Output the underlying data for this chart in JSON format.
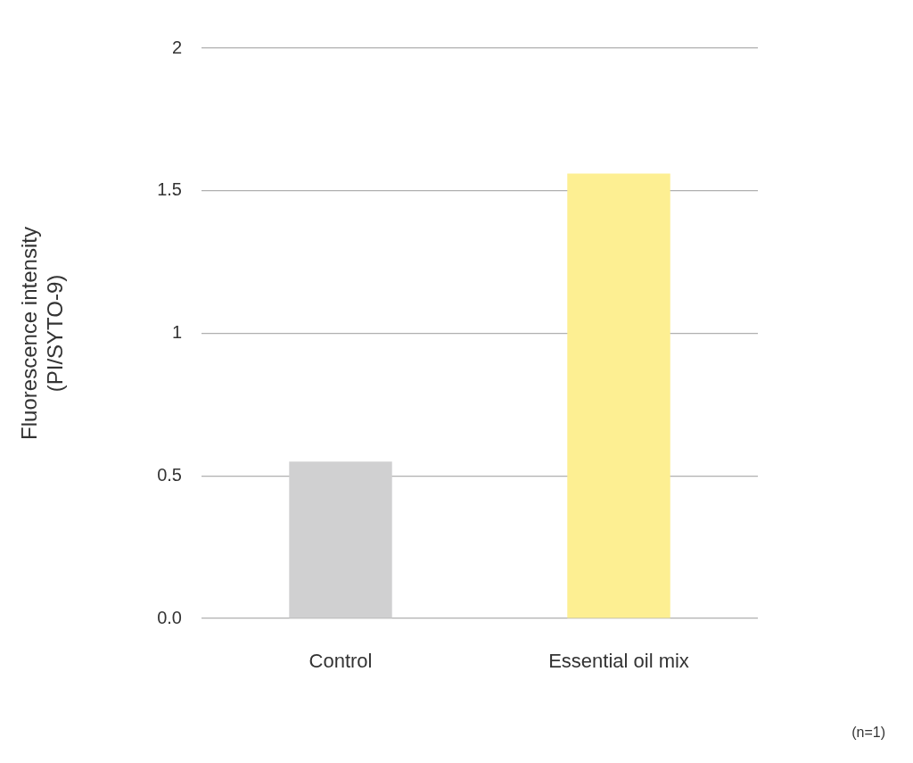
{
  "chart_data": {
    "type": "bar",
    "ylabel": "Fluorescence intensity\n(PI/SYTO-9)",
    "categories": [
      "Control",
      "Essential oil mix"
    ],
    "values": [
      0.55,
      1.56
    ],
    "colors": [
      "#d0d0d1",
      "#fdef92"
    ],
    "ylim": [
      0,
      2
    ],
    "yticks": [
      {
        "value": 0,
        "label": "0.0"
      },
      0.5,
      1,
      1.5,
      2
    ],
    "grid": "y",
    "legend": false,
    "annotations": [
      "(n=1)"
    ]
  }
}
